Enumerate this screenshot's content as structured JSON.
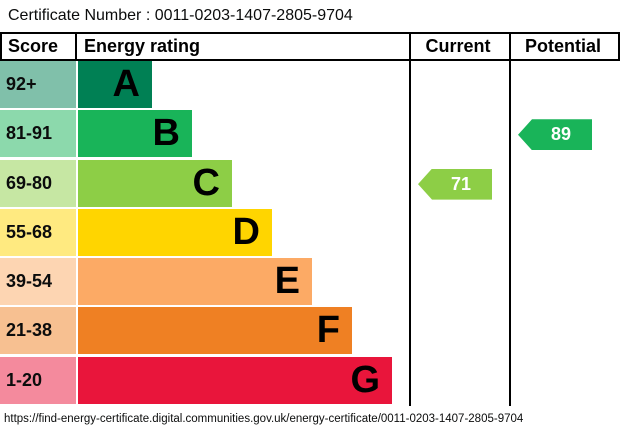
{
  "certificate_number": "Certificate Number : 0011-0203-1407-2805-9704",
  "header": {
    "score": "Score",
    "rating": "Energy rating",
    "current": "Current",
    "potential": "Potential"
  },
  "chart_data": {
    "type": "bar",
    "subtype": "epc_energy_rating_bands",
    "title": "Energy rating",
    "bands": [
      {
        "score_range": "92+",
        "letter": "A",
        "bar_color": "#008054",
        "tint_color": "#80c0aa"
      },
      {
        "score_range": "81-91",
        "letter": "B",
        "bar_color": "#19b459",
        "tint_color": "#8cd9ac"
      },
      {
        "score_range": "69-80",
        "letter": "C",
        "bar_color": "#8dce46",
        "tint_color": "#c6e7a3"
      },
      {
        "score_range": "55-68",
        "letter": "D",
        "bar_color": "#ffd500",
        "tint_color": "#ffea80"
      },
      {
        "score_range": "39-54",
        "letter": "E",
        "bar_color": "#fcaa65",
        "tint_color": "#fdd5b2"
      },
      {
        "score_range": "21-38",
        "letter": "F",
        "bar_color": "#ef8023",
        "tint_color": "#f7c091"
      },
      {
        "score_range": "1-20",
        "letter": "G",
        "bar_color": "#e9153b",
        "tint_color": "#f48a9d"
      }
    ],
    "current": {
      "value": 71,
      "band": "C",
      "color": "#8dce46"
    },
    "potential": {
      "value": 89,
      "band": "B",
      "color": "#19b459"
    }
  },
  "footer_url": "https://find-energy-certificate.digital.communities.gov.uk/energy-certificate/0011-0203-1407-2805-9704"
}
